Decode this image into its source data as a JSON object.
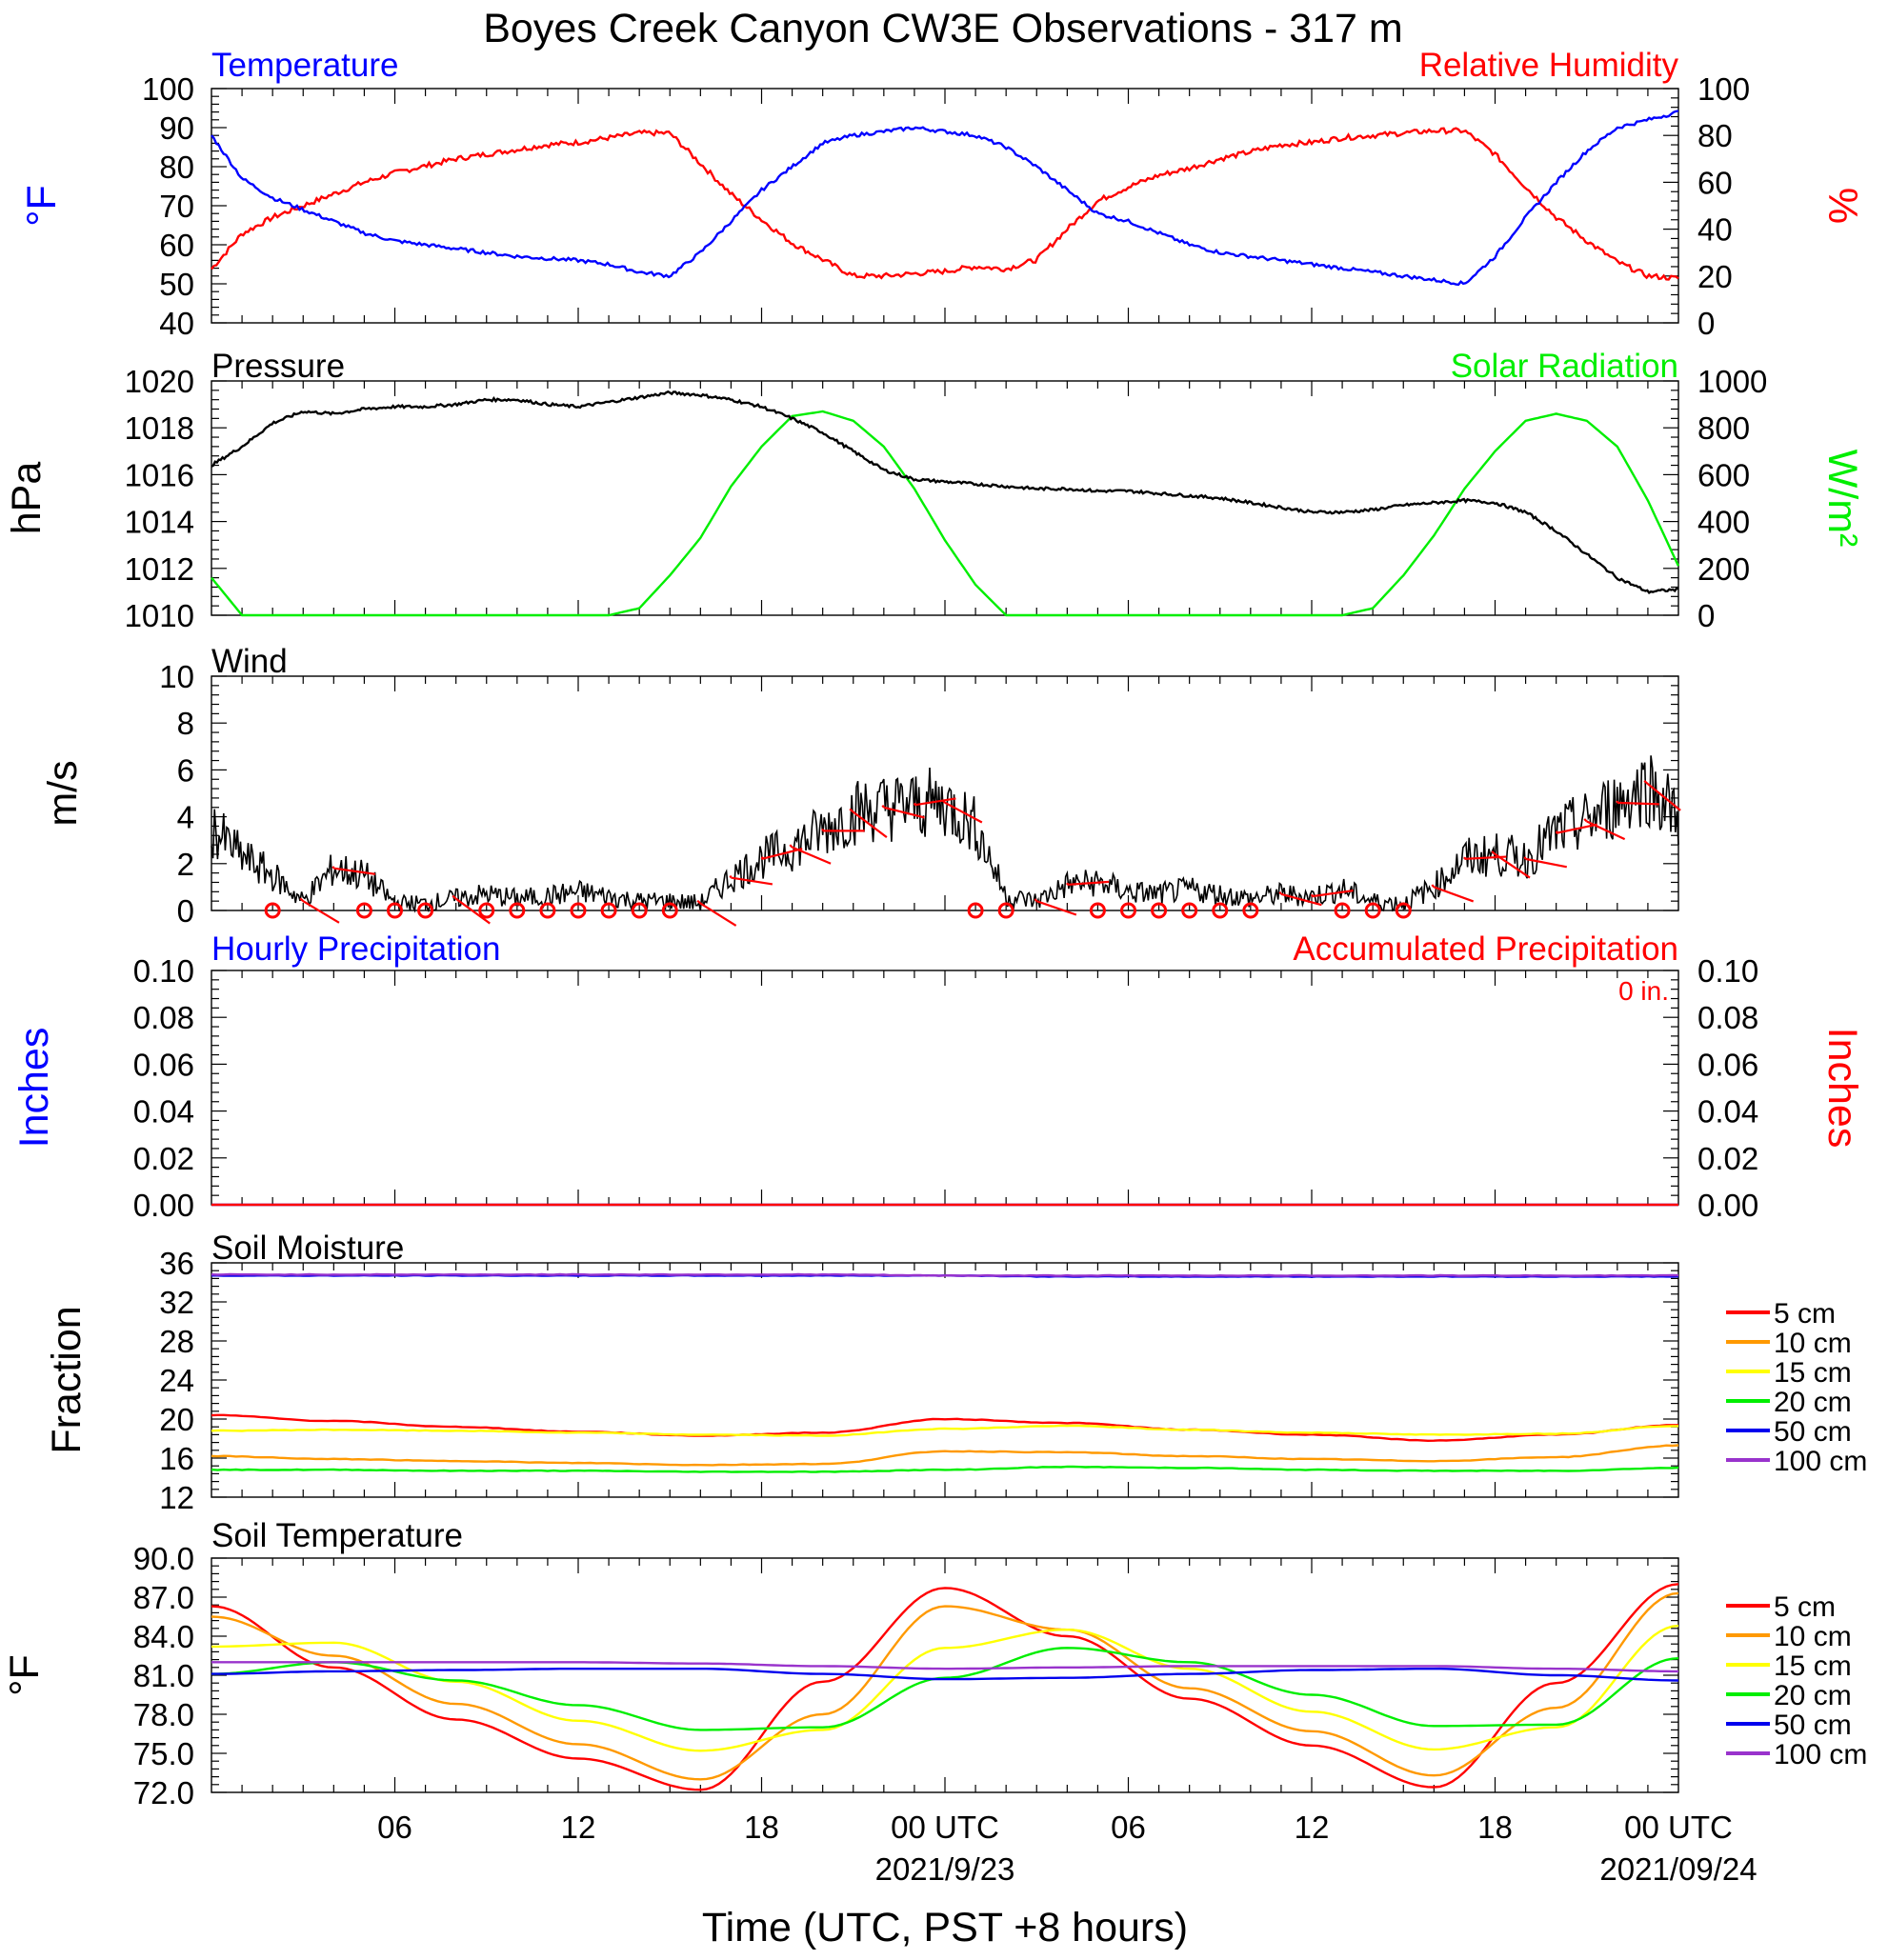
{
  "title": "Boyes Creek Canyon CW3E Observations - 317 m",
  "xlabel": "Time (UTC, PST +8 hours)",
  "colors": {
    "temperature": "#0000ff",
    "humidity": "#ff0000",
    "pressure": "#000000",
    "solar": "#00ee00",
    "wind": "#000000",
    "wind_barb": "#ff0000",
    "depth_5cm": "#ff0000",
    "depth_10cm": "#ff9900",
    "depth_15cm": "#ffff00",
    "depth_20cm": "#00ee00",
    "depth_50cm": "#0000ee",
    "depth_100cm": "#9933cc"
  },
  "x_axis": {
    "hours_per_tick": 1,
    "major_labels": [
      "06",
      "12",
      "18",
      "00 UTC",
      "06",
      "12",
      "18",
      "00 UTC"
    ],
    "date_labels": [
      "2021/9/23",
      "2021/09/24"
    ]
  },
  "panels": {
    "temp": {
      "left_title": "Temperature",
      "right_title": "Relative Humidity",
      "left_unit": "°F",
      "right_unit": "%",
      "left_ticks": [
        "100",
        "90",
        "80",
        "70",
        "60",
        "50",
        "40"
      ],
      "right_ticks": [
        "100",
        "80",
        "60",
        "40",
        "20",
        "0"
      ]
    },
    "pressure": {
      "left_title": "Pressure",
      "right_title": "Solar Radiation",
      "left_unit": "hPa",
      "right_unit": "W/m²",
      "left_ticks": [
        "1020",
        "1018",
        "1016",
        "1014",
        "1012",
        "1010"
      ],
      "right_ticks": [
        "1000",
        "800",
        "600",
        "400",
        "200",
        "0"
      ]
    },
    "wind": {
      "left_title": "Wind",
      "left_unit": "m/s",
      "left_ticks": [
        "10",
        "8",
        "6",
        "4",
        "2",
        "0"
      ]
    },
    "precip": {
      "left_title": "Hourly Precipitation",
      "right_title": "Accumulated Precipitation",
      "total": "0 in.",
      "left_unit": "Inches",
      "right_unit": "Inches",
      "left_ticks": [
        "0.10",
        "0.08",
        "0.06",
        "0.04",
        "0.02",
        "0.00"
      ],
      "right_ticks": [
        "0.10",
        "0.08",
        "0.06",
        "0.04",
        "0.02",
        "0.00"
      ]
    },
    "soil_moisture": {
      "left_title": "Soil Moisture",
      "left_unit": "Fraction",
      "left_ticks": [
        "36",
        "32",
        "28",
        "24",
        "20",
        "16",
        "12"
      ]
    },
    "soil_temp": {
      "left_title": "Soil Temperature",
      "left_unit": "°F",
      "left_ticks": [
        "90.0",
        "87.0",
        "84.0",
        "81.0",
        "78.0",
        "75.0",
        "72.0"
      ]
    }
  },
  "legend_labels": [
    "5 cm",
    "10 cm",
    "15 cm",
    "20 cm",
    "50 cm",
    "100 cm"
  ],
  "chart_data": [
    {
      "type": "line",
      "title": "Temperature / Relative Humidity",
      "x_hours": [
        0,
        1,
        2,
        3,
        4,
        5,
        6,
        7,
        8,
        9,
        10,
        11,
        12,
        13,
        14,
        15,
        16,
        17,
        18,
        19,
        20,
        21,
        22,
        23,
        24,
        25,
        26,
        27,
        28,
        29,
        30,
        31,
        32,
        33,
        34,
        35,
        36,
        37,
        38,
        39,
        40,
        41,
        42,
        43,
        44,
        45,
        46,
        47,
        48
      ],
      "series": [
        {
          "name": "Temperature",
          "axis": "left",
          "unit": "°F",
          "values": [
            88,
            77,
            72,
            69,
            66,
            63,
            61,
            60,
            59,
            58,
            57,
            56.5,
            56,
            55,
            53,
            52,
            58,
            66,
            74,
            80,
            86,
            88,
            89,
            90,
            89,
            88,
            85,
            80,
            74,
            68,
            66,
            63,
            60,
            58,
            57,
            56,
            55,
            54,
            53,
            52,
            51,
            50,
            57,
            67,
            76,
            84,
            90,
            92,
            94
          ]
        },
        {
          "name": "Relative Humidity",
          "axis": "right",
          "unit": "%",
          "values": [
            23,
            38,
            45,
            50,
            55,
            60,
            64,
            67,
            70,
            72,
            74,
            76,
            77,
            79,
            81,
            81,
            68,
            55,
            44,
            34,
            27,
            20,
            20,
            21,
            22,
            24,
            23,
            27,
            40,
            52,
            58,
            63,
            66,
            70,
            73,
            76,
            77,
            79,
            80,
            81,
            82,
            82,
            72,
            58,
            45,
            35,
            26,
            20,
            19
          ]
        }
      ],
      "ylim_left": [
        40,
        100
      ],
      "ylim_right": [
        0,
        100
      ]
    },
    {
      "type": "line",
      "title": "Pressure / Solar Radiation",
      "x_hours": [
        0,
        1,
        2,
        3,
        4,
        5,
        6,
        7,
        8,
        9,
        10,
        11,
        12,
        13,
        14,
        15,
        16,
        17,
        18,
        19,
        20,
        21,
        22,
        23,
        24,
        25,
        26,
        27,
        28,
        29,
        30,
        31,
        32,
        33,
        34,
        35,
        36,
        37,
        38,
        39,
        40,
        41,
        42,
        43,
        44,
        45,
        46,
        47,
        48
      ],
      "series": [
        {
          "name": "Pressure",
          "axis": "left",
          "unit": "hPa",
          "values": [
            1016.4,
            1017.2,
            1018.2,
            1018.7,
            1018.6,
            1018.8,
            1018.9,
            1018.9,
            1019.0,
            1019.2,
            1019.2,
            1019.0,
            1018.9,
            1019.1,
            1019.3,
            1019.5,
            1019.4,
            1019.2,
            1018.9,
            1018.4,
            1017.8,
            1017.0,
            1016.2,
            1015.8,
            1015.7,
            1015.6,
            1015.5,
            1015.4,
            1015.4,
            1015.3,
            1015.3,
            1015.2,
            1015.1,
            1015.0,
            1014.8,
            1014.6,
            1014.4,
            1014.4,
            1014.5,
            1014.7,
            1014.8,
            1014.9,
            1014.8,
            1014.4,
            1013.6,
            1012.6,
            1011.6,
            1011.0,
            1011.1
          ]
        },
        {
          "name": "Solar Radiation",
          "axis": "right",
          "unit": "W/m²",
          "values": [
            160,
            0,
            0,
            0,
            0,
            0,
            0,
            0,
            0,
            0,
            0,
            0,
            0,
            0,
            30,
            170,
            330,
            550,
            720,
            850,
            870,
            830,
            720,
            540,
            320,
            130,
            0,
            0,
            0,
            0,
            0,
            0,
            0,
            0,
            0,
            0,
            0,
            0,
            30,
            170,
            340,
            540,
            700,
            830,
            860,
            830,
            720,
            490,
            210
          ]
        }
      ],
      "ylim_left": [
        1010,
        1020
      ],
      "ylim_right": [
        0,
        1000
      ]
    },
    {
      "type": "line",
      "title": "Wind",
      "x_hours": [
        0,
        1,
        2,
        3,
        4,
        5,
        6,
        7,
        8,
        9,
        10,
        11,
        12,
        13,
        14,
        15,
        16,
        17,
        18,
        19,
        20,
        21,
        22,
        23,
        24,
        25,
        26,
        27,
        28,
        29,
        30,
        31,
        32,
        33,
        34,
        35,
        36,
        37,
        38,
        39,
        40,
        41,
        42,
        43,
        44,
        45,
        46,
        47,
        48
      ],
      "series": [
        {
          "name": "Wind",
          "unit": "m/s",
          "values": [
            3.5,
            2.3,
            1.5,
            0.4,
            1.8,
            1.5,
            0.3,
            0.3,
            0.5,
            0.7,
            0.5,
            0.6,
            0.8,
            0.6,
            0.4,
            0.4,
            0.3,
            1.4,
            2.2,
            2.7,
            3.4,
            4.2,
            4.4,
            4.5,
            4.6,
            3.6,
            0.6,
            0.4,
            1.1,
            1.2,
            0.8,
            0.7,
            0.9,
            0.7,
            0.5,
            0.7,
            0.6,
            0.9,
            0.4,
            0.3,
            1.0,
            2.2,
            2.4,
            2.2,
            3.3,
            3.8,
            4.6,
            5.4,
            4.0
          ]
        }
      ],
      "calm_hours": [
        2,
        5,
        6,
        7,
        9,
        10,
        11,
        12,
        13,
        14,
        15,
        25,
        26,
        29,
        30,
        31,
        32,
        33,
        34,
        37,
        38,
        39
      ],
      "ylim": [
        0,
        10
      ]
    },
    {
      "type": "line",
      "title": "Hourly / Accumulated Precipitation",
      "x_hours": [
        0,
        48
      ],
      "series": [
        {
          "name": "Hourly Precipitation",
          "axis": "left",
          "unit": "Inches",
          "values": [
            0,
            0
          ]
        },
        {
          "name": "Accumulated Precipitation",
          "axis": "right",
          "unit": "Inches",
          "values": [
            0,
            0
          ]
        }
      ],
      "ylim": [
        0,
        0.1
      ]
    },
    {
      "type": "line",
      "title": "Soil Moisture",
      "x_hours": [
        0,
        4,
        8,
        12,
        16,
        20,
        24,
        28,
        32,
        36,
        40,
        44,
        48
      ],
      "series": [
        {
          "name": "5 cm",
          "values": [
            20.4,
            19.8,
            19.2,
            18.7,
            18.3,
            18.6,
            20.0,
            19.6,
            18.9,
            18.4,
            17.8,
            18.4,
            19.4
          ]
        },
        {
          "name": "10 cm",
          "values": [
            16.2,
            15.9,
            15.7,
            15.5,
            15.3,
            15.4,
            16.7,
            16.6,
            16.2,
            15.9,
            15.7,
            16.1,
            17.3
          ]
        },
        {
          "name": "15 cm",
          "values": [
            18.8,
            18.9,
            18.8,
            18.6,
            18.4,
            18.3,
            19.0,
            19.3,
            18.9,
            18.6,
            18.4,
            18.5,
            19.3
          ]
        },
        {
          "name": "20 cm",
          "values": [
            14.8,
            14.8,
            14.7,
            14.7,
            14.6,
            14.6,
            14.8,
            15.1,
            15.0,
            14.8,
            14.7,
            14.7,
            15.0
          ]
        },
        {
          "name": "50 cm",
          "values": [
            34.7,
            34.7,
            34.7,
            34.7,
            34.7,
            34.7,
            34.7,
            34.6,
            34.6,
            34.6,
            34.6,
            34.6,
            34.6
          ]
        },
        {
          "name": "100 cm",
          "values": [
            34.8,
            34.8,
            34.8,
            34.8,
            34.8,
            34.8,
            34.7,
            34.7,
            34.7,
            34.7,
            34.7,
            34.7,
            34.7
          ]
        }
      ],
      "ylim": [
        12,
        36
      ]
    },
    {
      "type": "line",
      "title": "Soil Temperature",
      "x_hours": [
        0,
        4,
        8,
        12,
        16,
        20,
        24,
        28,
        32,
        36,
        40,
        44,
        48
      ],
      "series": [
        {
          "name": "5 cm",
          "values": [
            86.3,
            81.6,
            77.6,
            74.6,
            72.2,
            80.5,
            87.7,
            84.0,
            79.2,
            75.6,
            72.4,
            80.4,
            88.0
          ]
        },
        {
          "name": "10 cm",
          "values": [
            85.5,
            82.5,
            78.8,
            75.7,
            73.0,
            78.0,
            86.3,
            84.5,
            80.0,
            76.7,
            73.3,
            78.5,
            87.3
          ]
        },
        {
          "name": "15 cm",
          "values": [
            83.2,
            83.5,
            80.5,
            77.5,
            75.2,
            76.8,
            83.1,
            84.5,
            81.5,
            78.2,
            75.3,
            77.0,
            84.8
          ]
        },
        {
          "name": "20 cm",
          "values": [
            81.1,
            82.0,
            80.6,
            78.7,
            76.8,
            77.0,
            80.8,
            83.1,
            82.0,
            79.5,
            77.1,
            77.2,
            82.3
          ]
        },
        {
          "name": "50 cm",
          "values": [
            81.1,
            81.3,
            81.4,
            81.5,
            81.5,
            81.1,
            80.7,
            80.8,
            81.1,
            81.4,
            81.5,
            81.0,
            80.6
          ]
        },
        {
          "name": "100 cm",
          "values": [
            82.0,
            82.0,
            82.0,
            82.0,
            81.9,
            81.7,
            81.5,
            81.6,
            81.7,
            81.7,
            81.7,
            81.5,
            81.3
          ]
        }
      ],
      "ylim": [
        72,
        90
      ]
    }
  ]
}
